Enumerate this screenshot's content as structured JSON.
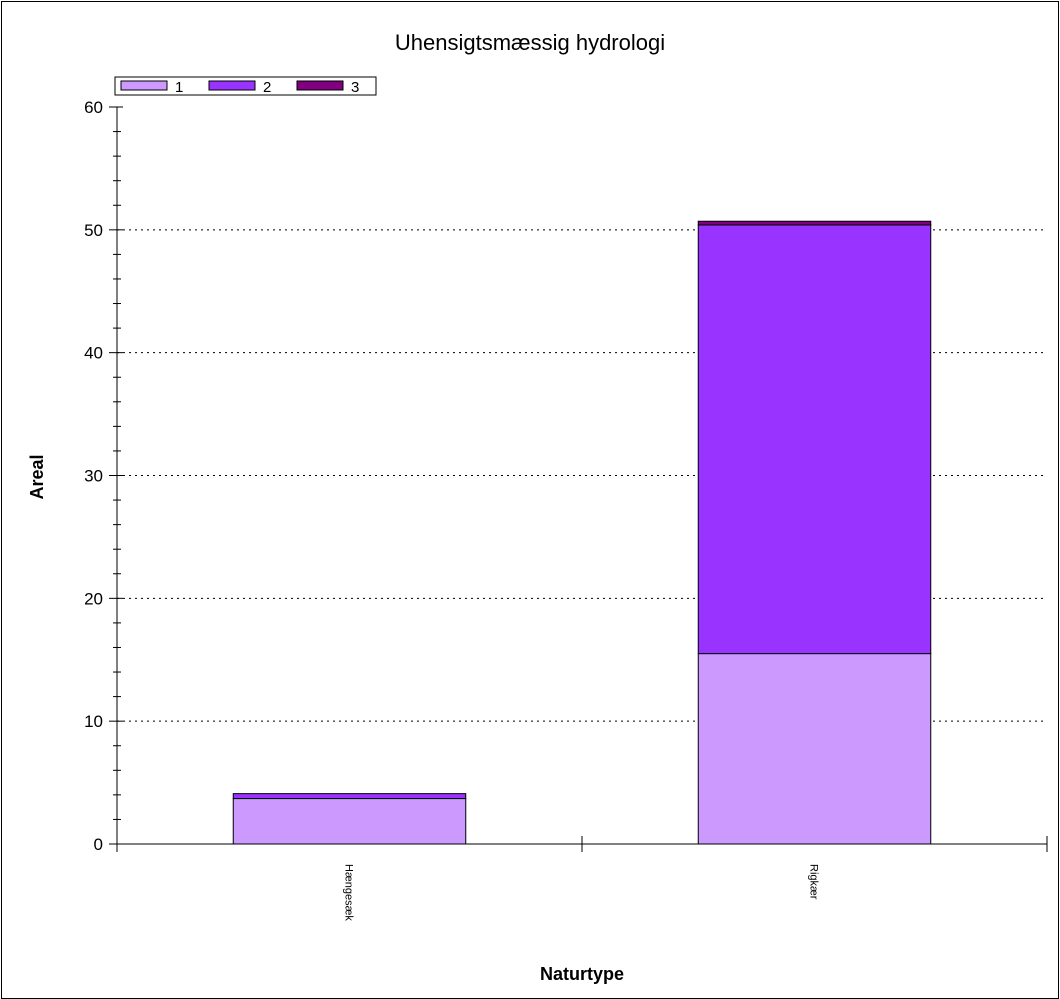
{
  "chart_data": {
    "type": "bar",
    "stacked": true,
    "title": "Uhensigtsmæssig hydrologi",
    "xlabel": "Naturtype",
    "ylabel": "Areal",
    "categories": [
      "Hængesæk",
      "Rigkær"
    ],
    "series": [
      {
        "name": "1",
        "color": "#cc99ff",
        "values": [
          3.7,
          15.5
        ]
      },
      {
        "name": "2",
        "color": "#9933ff",
        "values": [
          0.4,
          34.9
        ]
      },
      {
        "name": "3",
        "color": "#800080",
        "values": [
          0.0,
          0.3
        ]
      }
    ],
    "ylim": [
      0,
      60
    ],
    "yticks": [
      0,
      10,
      20,
      30,
      40,
      50,
      60
    ],
    "grid": "horizontal dotted",
    "legend_position": "top-left"
  }
}
